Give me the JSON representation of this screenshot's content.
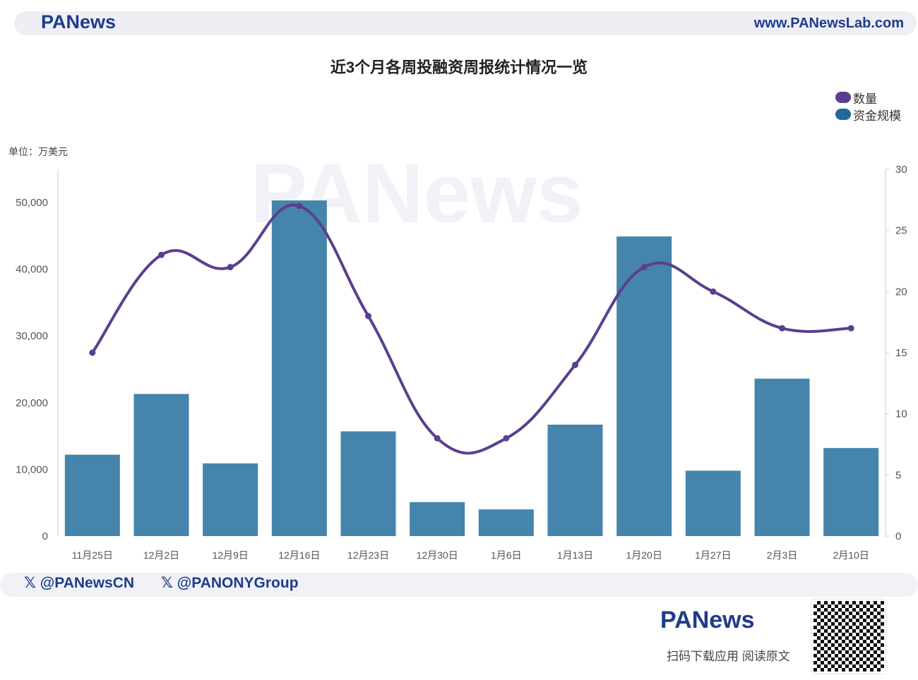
{
  "header": {
    "logo": "PANews",
    "site": "www.PANewsLab.com"
  },
  "footer": {
    "handles": [
      "@PANewsCN",
      "@PANONYGroup"
    ],
    "logo": "PANews",
    "scan_text": "扫码下载应用  阅读原文"
  },
  "colors": {
    "bar": "#4584ab",
    "line": "#5b3f8f",
    "brand": "#1f3c8c"
  },
  "chart_data": {
    "type": "bar+line",
    "title": "近3个月各周投融资周报统计情况一览",
    "unit_label": "单位：万美元",
    "categories": [
      "11月25日",
      "12月2日",
      "12月9日",
      "12月16日",
      "12月23日",
      "12月30日",
      "1月6日",
      "1月13日",
      "1月20日",
      "1月27日",
      "2月3日",
      "2月10日"
    ],
    "series": [
      {
        "name": "资金规模",
        "type": "bar",
        "axis": "left",
        "values": [
          12200,
          21300,
          10900,
          50300,
          15700,
          5100,
          4000,
          16700,
          44900,
          9800,
          23600,
          13200
        ]
      },
      {
        "name": "数量",
        "type": "line",
        "axis": "right",
        "smooth": true,
        "values": [
          15,
          23,
          22,
          27,
          18,
          8,
          8,
          14,
          22,
          20,
          17,
          17
        ]
      }
    ],
    "y_left": {
      "range": [
        0,
        55000
      ],
      "ticks": [
        "0",
        "10,000",
        "20,000",
        "30,000",
        "40,000",
        "50,000"
      ]
    },
    "y_right": {
      "range": [
        0,
        30
      ],
      "ticks": [
        "0",
        "5",
        "10",
        "15",
        "20",
        "25",
        "30"
      ]
    },
    "legend": [
      "数量",
      "资金规模"
    ],
    "legend_placement": "top-right",
    "grid": false
  }
}
